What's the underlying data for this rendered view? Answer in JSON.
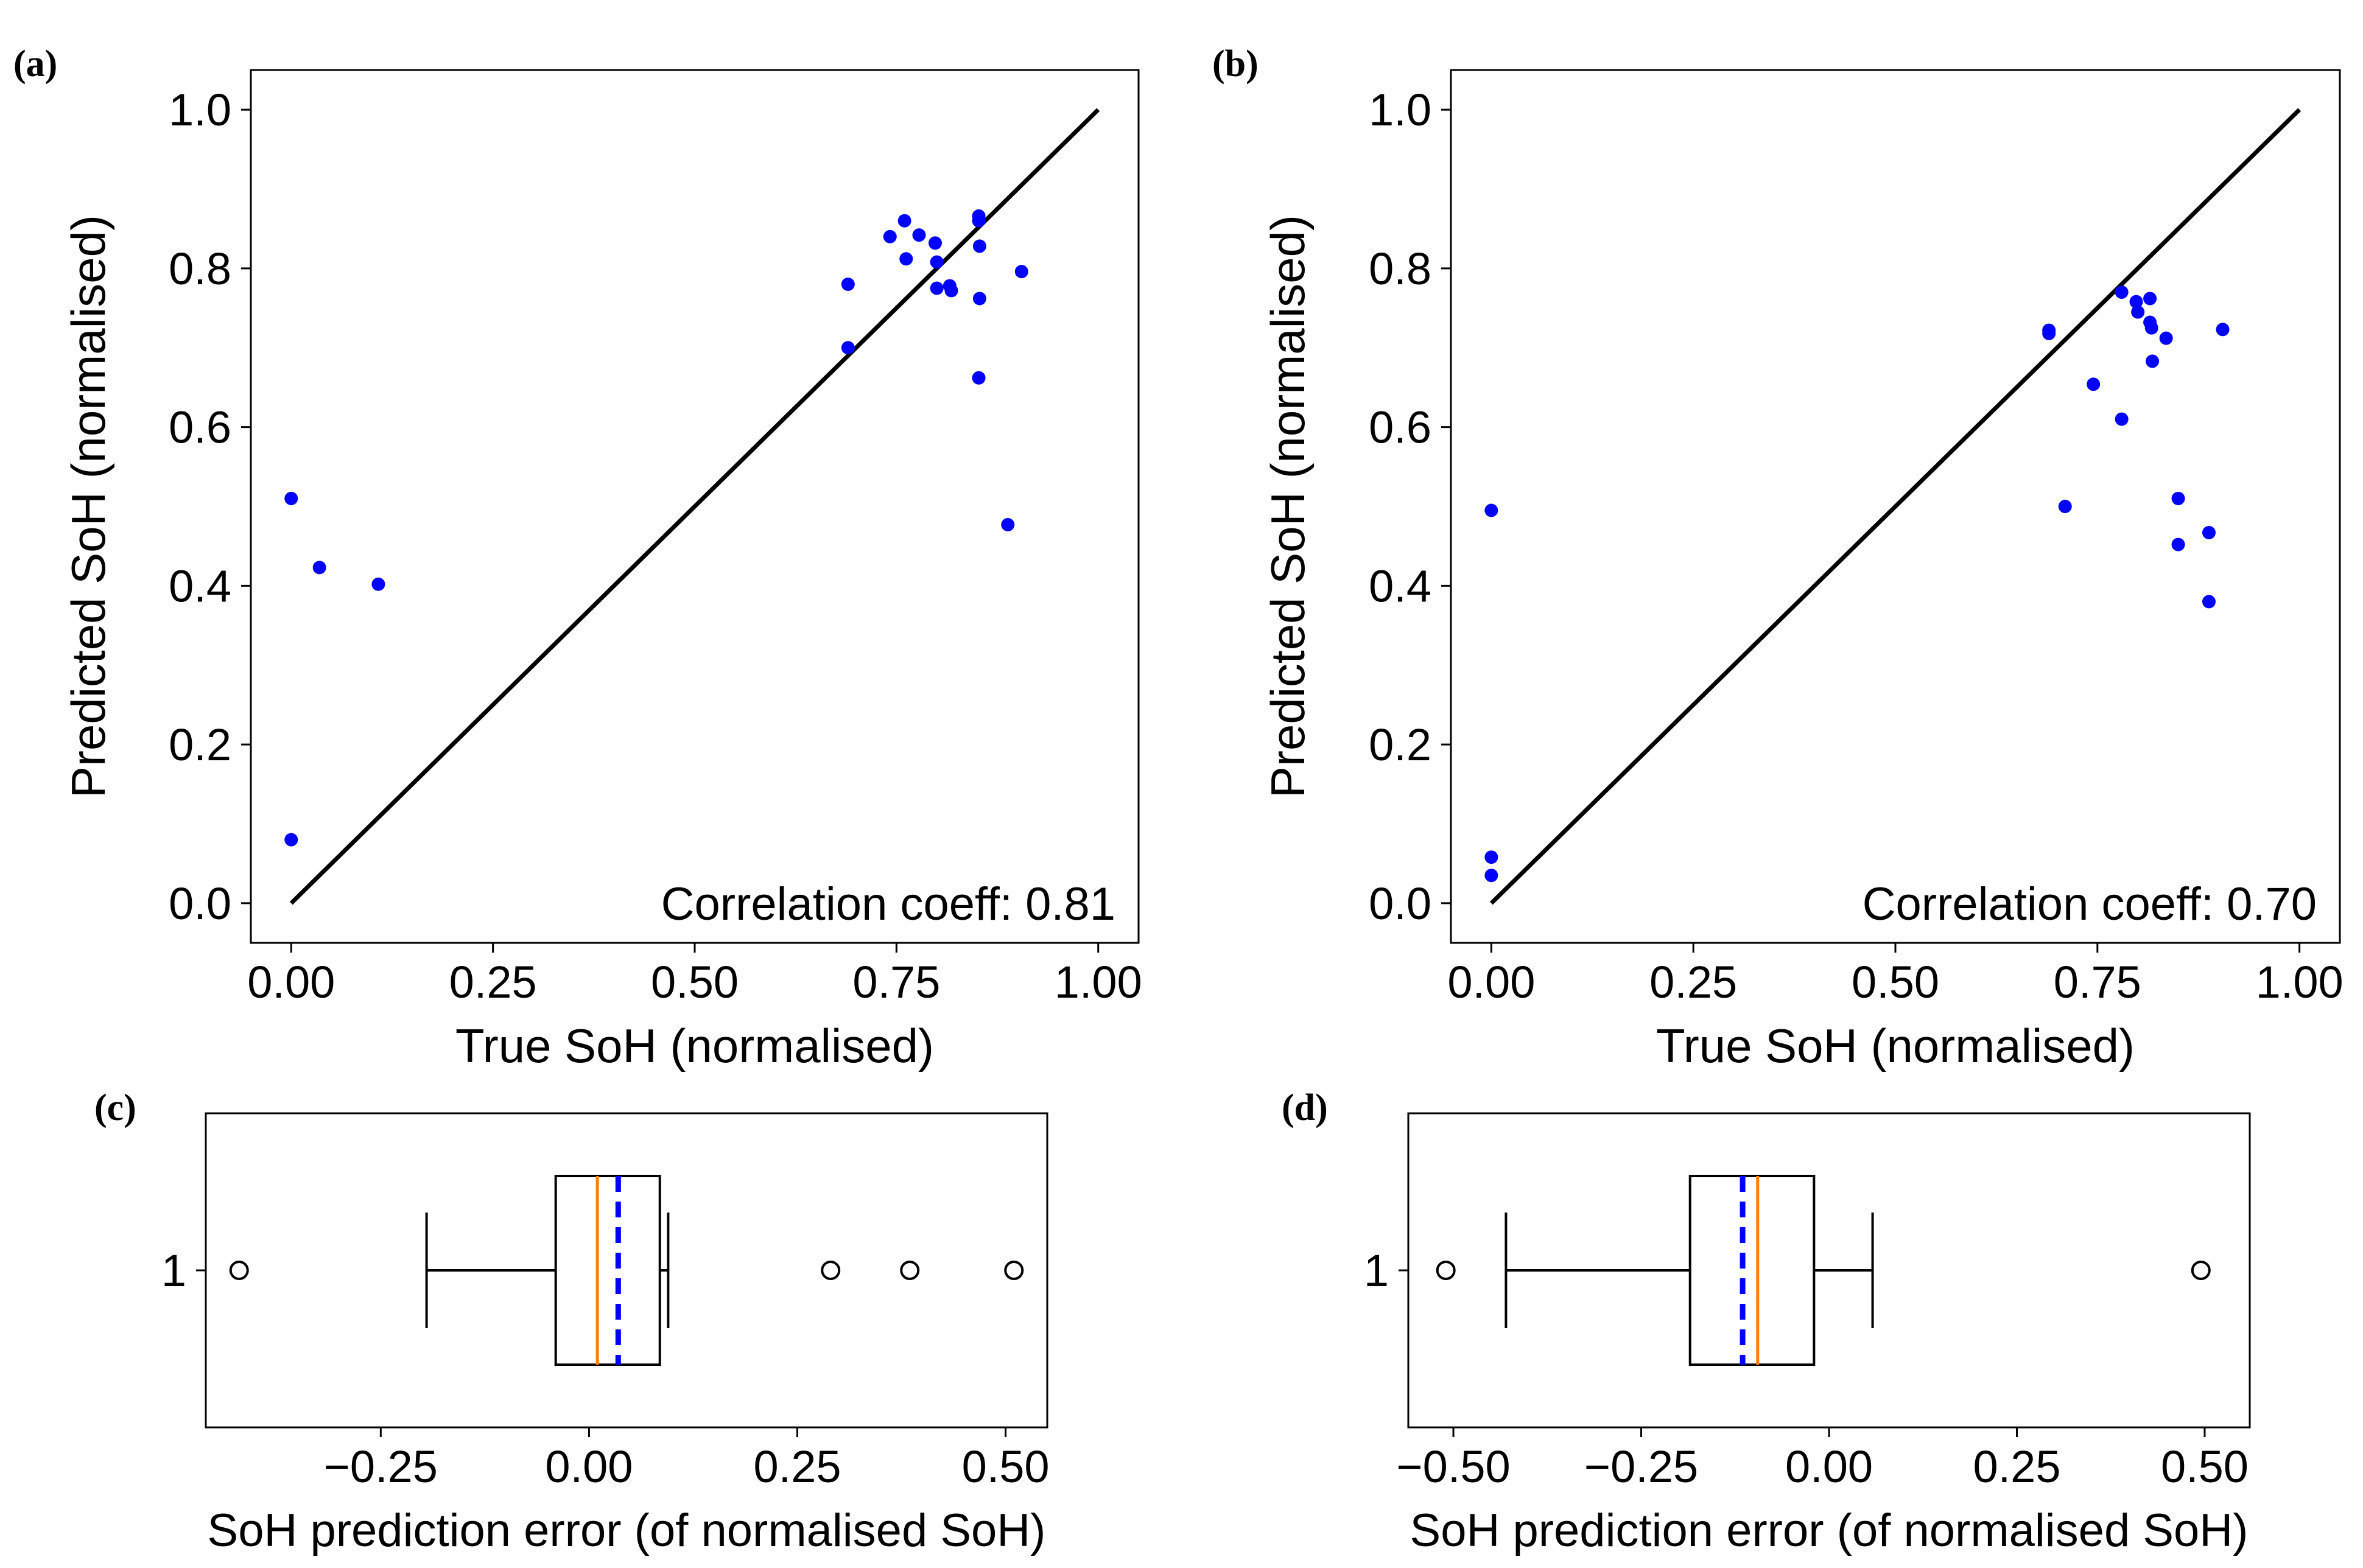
{
  "colors": {
    "points": "#0000ff",
    "identity_line": "#000000",
    "median": "#ff7f0e",
    "mean": "#0000ff",
    "axis": "#000000"
  },
  "chart_data": [
    {
      "panel": "(a)",
      "type": "scatter",
      "xlabel": "True SoH (normalised)",
      "ylabel": "Predicted SoH (normalised)",
      "xlim": [
        -0.05,
        1.05
      ],
      "ylim": [
        -0.05,
        1.05
      ],
      "xticks": [
        "0.00",
        "0.25",
        "0.50",
        "0.75",
        "1.00"
      ],
      "yticks": [
        "0.0",
        "0.2",
        "0.4",
        "0.6",
        "0.8",
        "1.0"
      ],
      "annotation": "Correlation coeff: 0.81",
      "reference_line": [
        [
          0,
          0
        ],
        [
          1,
          1
        ]
      ],
      "points": [
        [
          0.0,
          0.08
        ],
        [
          0.0,
          0.51
        ],
        [
          0.035,
          0.423
        ],
        [
          0.108,
          0.402
        ],
        [
          0.69,
          0.7
        ],
        [
          0.69,
          0.78
        ],
        [
          0.742,
          0.84
        ],
        [
          0.76,
          0.86
        ],
        [
          0.762,
          0.812
        ],
        [
          0.778,
          0.842
        ],
        [
          0.798,
          0.832
        ],
        [
          0.8,
          0.808
        ],
        [
          0.8,
          0.775
        ],
        [
          0.816,
          0.778
        ],
        [
          0.818,
          0.772
        ],
        [
          0.852,
          0.866
        ],
        [
          0.852,
          0.86
        ],
        [
          0.853,
          0.828
        ],
        [
          0.853,
          0.762
        ],
        [
          0.852,
          0.662
        ],
        [
          0.888,
          0.477
        ],
        [
          0.905,
          0.796
        ]
      ]
    },
    {
      "panel": "(b)",
      "type": "scatter",
      "xlabel": "True SoH (normalised)",
      "ylabel": "Predicted SoH (normalised)",
      "xlim": [
        -0.05,
        1.05
      ],
      "ylim": [
        -0.05,
        1.05
      ],
      "xticks": [
        "0.00",
        "0.25",
        "0.50",
        "0.75",
        "1.00"
      ],
      "yticks": [
        "0.0",
        "0.2",
        "0.4",
        "0.6",
        "0.8",
        "1.0"
      ],
      "annotation": "Correlation coeff: 0.70",
      "reference_line": [
        [
          0,
          0
        ],
        [
          1,
          1
        ]
      ],
      "points": [
        [
          0.0,
          0.035
        ],
        [
          0.0,
          0.058
        ],
        [
          0.0,
          0.495
        ],
        [
          0.69,
          0.718
        ],
        [
          0.69,
          0.722
        ],
        [
          0.71,
          0.5
        ],
        [
          0.745,
          0.654
        ],
        [
          0.78,
          0.61
        ],
        [
          0.78,
          0.77
        ],
        [
          0.798,
          0.758
        ],
        [
          0.8,
          0.745
        ],
        [
          0.815,
          0.762
        ],
        [
          0.815,
          0.732
        ],
        [
          0.817,
          0.725
        ],
        [
          0.818,
          0.683
        ],
        [
          0.835,
          0.712
        ],
        [
          0.85,
          0.51
        ],
        [
          0.85,
          0.452
        ],
        [
          0.888,
          0.467
        ],
        [
          0.888,
          0.38
        ],
        [
          0.905,
          0.723
        ]
      ]
    },
    {
      "panel": "(c)",
      "type": "boxplot",
      "orientation": "horizontal",
      "xlabel": "SoH prediction error (of normalised SoH)",
      "category": "1",
      "xlim": [
        -0.46,
        0.55
      ],
      "xticks": [
        -0.25,
        0.0,
        0.25,
        0.5
      ],
      "xtick_labels": [
        "−0.25",
        "0.00",
        "0.25",
        "0.50"
      ],
      "whisker_low": -0.195,
      "q1": -0.04,
      "median": 0.01,
      "mean": 0.035,
      "q3": 0.085,
      "whisker_high": 0.095,
      "outliers": [
        -0.42,
        0.29,
        0.385,
        0.51
      ]
    },
    {
      "panel": "(d)",
      "type": "boxplot",
      "orientation": "horizontal",
      "xlabel": "SoH prediction error (of normalised SoH)",
      "category": "1",
      "xlim": [
        -0.56,
        0.56
      ],
      "xticks": [
        -0.5,
        -0.25,
        0.0,
        0.25,
        0.5
      ],
      "xtick_labels": [
        "−0.50",
        "−0.25",
        "0.00",
        "0.25",
        "0.50"
      ],
      "whisker_low": -0.43,
      "q1": -0.185,
      "median": -0.095,
      "mean": -0.115,
      "q3": -0.02,
      "whisker_high": 0.058,
      "outliers": [
        -0.51,
        0.495
      ]
    }
  ]
}
